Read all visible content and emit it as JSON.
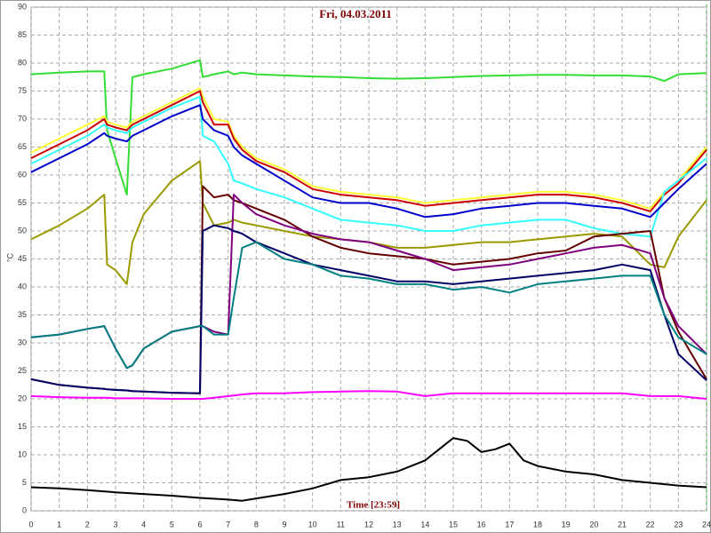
{
  "chart_data": {
    "type": "line",
    "title": "Fri, 04.03.2011",
    "xlabel": "Time [23:59]",
    "ylabel": "°C",
    "xlim": [
      0,
      24
    ],
    "ylim": [
      0,
      90
    ],
    "xticks": [
      0,
      1,
      2,
      3,
      4,
      5,
      6,
      7,
      8,
      9,
      10,
      11,
      12,
      13,
      14,
      15,
      16,
      17,
      18,
      19,
      20,
      21,
      22,
      23,
      24
    ],
    "yticks": [
      0,
      5,
      10,
      15,
      20,
      25,
      30,
      35,
      40,
      45,
      50,
      55,
      60,
      65,
      70,
      75,
      80,
      85,
      90
    ],
    "grid": true,
    "x": [
      0,
      1,
      2,
      2.6,
      2.7,
      3,
      3.4,
      3.6,
      4,
      5,
      6,
      6.1,
      6.5,
      7,
      7.2,
      7.5,
      8,
      9,
      10,
      11,
      12,
      13,
      14,
      15,
      16,
      17,
      18,
      19,
      20,
      21,
      22,
      22.5,
      23,
      24
    ],
    "series": [
      {
        "color": "#33dd33",
        "values": [
          78,
          78.3,
          78.5,
          78.5,
          68,
          63,
          56.5,
          77.5,
          78,
          79,
          80.5,
          77.5,
          78,
          78.5,
          78,
          78.3,
          78,
          77.8,
          77.6,
          77.5,
          77.3,
          77.2,
          77.3,
          77.5,
          77.7,
          77.8,
          77.9,
          77.9,
          77.8,
          77.8,
          77.6,
          76.8,
          78,
          78.2
        ]
      },
      {
        "color": "#ffff33",
        "values": [
          64,
          66.5,
          69,
          70.5,
          69.5,
          69,
          68.5,
          69.5,
          70.5,
          73,
          75.5,
          74,
          70,
          69.5,
          67,
          65,
          63,
          61,
          58,
          57,
          56.5,
          56,
          55,
          55.5,
          56,
          56.5,
          57,
          57,
          56.5,
          55.5,
          54,
          57,
          59,
          65
        ]
      },
      {
        "color": "#cc0000",
        "values": [
          63,
          65.5,
          68,
          70,
          69,
          68.5,
          68,
          69,
          70,
          72.5,
          75,
          73,
          69,
          69,
          66.5,
          64.5,
          62.5,
          60.5,
          57.5,
          56.5,
          56,
          55.5,
          54.5,
          55,
          55.5,
          56,
          56.5,
          56.5,
          56,
          55,
          53.5,
          56.5,
          58.5,
          64.5
        ]
      },
      {
        "color": "#33ffff",
        "values": [
          62,
          64.5,
          67,
          69,
          68.5,
          68,
          67.5,
          68.5,
          69.5,
          72,
          74,
          67,
          66,
          62,
          59,
          58.5,
          57.5,
          56,
          54,
          52,
          51.5,
          51,
          50,
          50,
          51,
          51.5,
          52,
          52,
          50.5,
          49.5,
          49,
          57,
          59,
          63
        ]
      },
      {
        "color": "#0000cc",
        "values": [
          60.5,
          63,
          65.5,
          67.5,
          67,
          66.5,
          66,
          67,
          68,
          70.5,
          72.5,
          70,
          68,
          67,
          65,
          63.5,
          62,
          59,
          56,
          55,
          55,
          54,
          52.5,
          53,
          54,
          54.5,
          55,
          55,
          54.5,
          54,
          52.5,
          55,
          57.5,
          62
        ]
      },
      {
        "color": "#999900",
        "values": [
          48.5,
          51,
          54,
          56.5,
          44,
          43,
          40.5,
          48,
          53,
          59,
          62.5,
          55,
          51,
          51.5,
          52,
          51.5,
          51,
          50,
          49,
          48.5,
          48,
          47,
          47,
          47.5,
          48,
          48,
          48.5,
          49,
          49.5,
          49,
          44,
          43.5,
          49,
          55.5
        ]
      },
      {
        "color": "#660000",
        "values": [
          23.5,
          22.5,
          22,
          21.8,
          21.7,
          21.6,
          21.5,
          21.4,
          21.3,
          21.1,
          21,
          58,
          56,
          56.5,
          55.5,
          55,
          54,
          52,
          49,
          47,
          46,
          45.5,
          45,
          44,
          44.5,
          45,
          46,
          46.5,
          49,
          49.5,
          50,
          38,
          32,
          23.5
        ]
      },
      {
        "color": "#800080",
        "values": [
          31,
          31.5,
          32.5,
          33,
          32,
          29,
          25.5,
          26,
          29,
          32,
          33,
          33,
          32,
          31.5,
          56.5,
          55,
          53,
          51,
          49.5,
          48.5,
          48,
          46.5,
          45,
          43,
          43.5,
          44,
          45,
          46,
          47,
          47.5,
          46,
          38,
          33,
          28
        ]
      },
      {
        "color": "#000066",
        "values": [
          23.5,
          22.5,
          22,
          21.8,
          21.7,
          21.6,
          21.5,
          21.4,
          21.3,
          21.1,
          21,
          50,
          51,
          50.5,
          50,
          49.5,
          48,
          46,
          44,
          43,
          42,
          41,
          41,
          40.5,
          41,
          41.5,
          42,
          42.5,
          43,
          44,
          43,
          35,
          28,
          23.3
        ]
      },
      {
        "color": "#008080",
        "values": [
          31,
          31.5,
          32.5,
          33,
          32,
          29,
          25.5,
          26,
          29,
          32,
          33,
          33,
          31.5,
          31.5,
          38,
          47,
          48,
          45,
          44,
          42,
          41.5,
          40.5,
          40.5,
          39.5,
          40,
          39,
          40.5,
          41,
          41.5,
          42,
          42,
          35,
          31,
          28
        ]
      },
      {
        "color": "#ff00ff",
        "values": [
          20.5,
          20.3,
          20.2,
          20.2,
          20.2,
          20.1,
          20.1,
          20.1,
          20.1,
          20,
          20,
          20,
          20.2,
          20.5,
          20.6,
          20.8,
          21,
          21,
          21.2,
          21.3,
          21.4,
          21.3,
          20.5,
          21,
          21,
          21,
          21,
          21,
          21,
          21,
          20.5,
          20.5,
          20.5,
          20
        ]
      },
      {
        "color": "#000000",
        "x": [
          0,
          1,
          2,
          3,
          4,
          5,
          6,
          7,
          7.5,
          8,
          9,
          10,
          11,
          12,
          13,
          14,
          14.5,
          15,
          15.5,
          16,
          16.5,
          17,
          17.5,
          18,
          19,
          20,
          21,
          22,
          23,
          24
        ],
        "values": [
          4.2,
          4,
          3.7,
          3.3,
          3,
          2.7,
          2.3,
          2,
          1.8,
          2.2,
          3,
          4,
          5.5,
          6,
          7,
          9,
          11,
          13,
          12.5,
          10.5,
          11,
          12,
          9,
          8,
          7,
          6.5,
          5.5,
          5,
          4.5,
          4.2
        ]
      }
    ]
  }
}
